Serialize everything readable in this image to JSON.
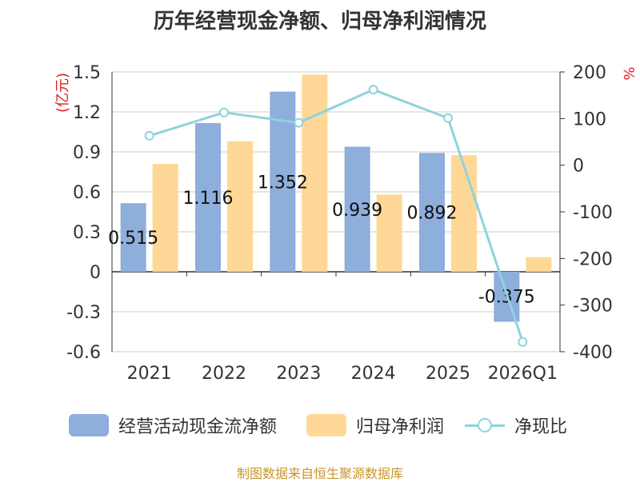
{
  "title": "历年经营现金净额、归母净利润情况",
  "source": "制图数据来自恒生聚源数据库",
  "colors": {
    "cash_flow": "#8eaedc",
    "net_profit": "#ffd796",
    "ratio": "#8fd3dc",
    "axis_unit": "#e02020",
    "text": "#333333",
    "grid": "#cccccc"
  },
  "chart_data": {
    "type": "bar",
    "title": "历年经营现金净额、归母净利润情况",
    "categories": [
      "2021",
      "2022",
      "2023",
      "2024",
      "2025",
      "2026Q1"
    ],
    "y_left": {
      "label": "(亿元)",
      "ylim": [
        -0.6,
        1.5
      ],
      "ticks": [
        "1.5",
        "1.2",
        "0.9",
        "0.6",
        "0.3",
        "0",
        "-0.3",
        "-0.6"
      ]
    },
    "y_right": {
      "label": "%",
      "ylim": [
        -400,
        200
      ],
      "ticks": [
        "200",
        "100",
        "0",
        "-100",
        "-200",
        "-300",
        "-400"
      ]
    },
    "series": [
      {
        "name": "经营活动现金流净额",
        "type": "bar",
        "axis": "left",
        "values": [
          0.515,
          1.116,
          1.352,
          0.939,
          0.892,
          -0.375
        ],
        "labels": [
          "0.515",
          "1.116",
          "1.352",
          "0.939",
          "0.892",
          "-0.375"
        ]
      },
      {
        "name": "归母净利润",
        "type": "bar",
        "axis": "left",
        "values": [
          0.81,
          0.98,
          1.48,
          0.58,
          0.875,
          0.11
        ]
      },
      {
        "name": "净现比",
        "type": "line",
        "axis": "right",
        "values": [
          63,
          113,
          91,
          162,
          101,
          -379
        ]
      }
    ],
    "grid": true,
    "legend": "bottom"
  }
}
